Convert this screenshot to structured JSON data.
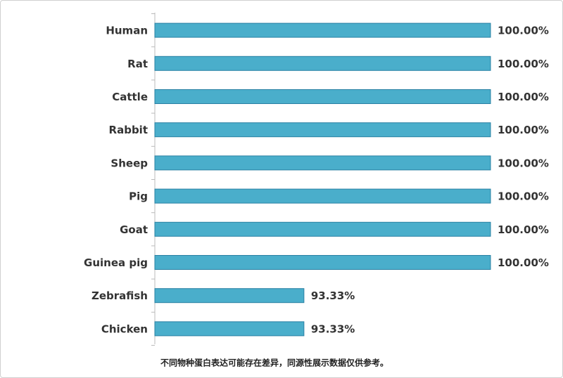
{
  "chart_data": {
    "type": "hbar",
    "categories": [
      "Human",
      "Rat",
      "Cattle",
      "Rabbit",
      "Sheep",
      "Pig",
      "Goat",
      "Guinea pig",
      "Zebrafish",
      "Chicken"
    ],
    "values": [
      100,
      100,
      100,
      100,
      100,
      100,
      100,
      100,
      93.33,
      93.33
    ],
    "value_labels": [
      "100.00%",
      "100.00%",
      "100.00%",
      "100.00%",
      "100.00%",
      "100.00%",
      "100.00%",
      "100.00%",
      "93.33%",
      "93.33%"
    ],
    "color": "#4aaecb",
    "xlim": [
      88,
      100
    ],
    "footnote": "不同物种蛋白表达可能存在差异，同源性展示数据仅供参考。"
  }
}
